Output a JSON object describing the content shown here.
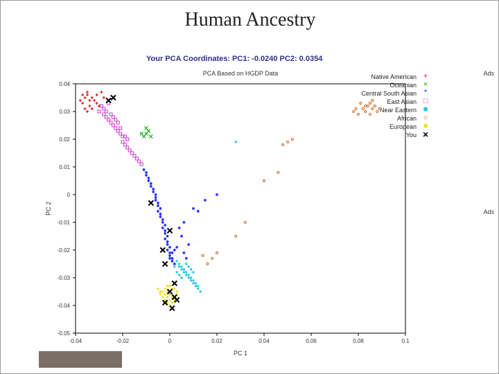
{
  "title": "Human Ancestry",
  "coords_line": "Your PCA Coordinates: PC1: -0.0240 PC2: 0.0354",
  "ads_label": "Ads",
  "chart": {
    "type": "scatter",
    "subtitle": "PCA Based on HGDP Data",
    "subtitle_fontsize": 9,
    "xlabel": "PC 1",
    "ylabel": "PC 2",
    "label_fontsize": 9,
    "tick_fontsize": 8,
    "background_color": "#ffffff",
    "axis_color": "#000000",
    "tick_color": "#000000",
    "xlim": [
      -0.04,
      0.1
    ],
    "ylim": [
      -0.05,
      0.04
    ],
    "xticks": [
      -0.04,
      -0.02,
      0,
      0.02,
      0.04,
      0.06,
      0.08,
      0.1
    ],
    "yticks": [
      -0.05,
      -0.04,
      -0.03,
      -0.02,
      -0.01,
      0,
      0.01,
      0.02,
      0.03,
      0.04
    ],
    "legend": [
      {
        "label": "Native American",
        "color": "#e01010",
        "marker": "+"
      },
      {
        "label": "Oceanian",
        "color": "#10a810",
        "marker": "x"
      },
      {
        "label": "Central South Asian",
        "color": "#2030ff",
        "marker": "*"
      },
      {
        "label": "East Asian",
        "color": "#d030d0",
        "marker": "square"
      },
      {
        "label": "Near Eastern",
        "color": "#20c8e8",
        "marker": "square-filled"
      },
      {
        "label": "African",
        "color": "#c86820",
        "marker": "o"
      },
      {
        "label": "European",
        "color": "#f0e020",
        "marker": "square-filled"
      },
      {
        "label": "You",
        "color": "#000000",
        "marker": "X"
      }
    ],
    "series": {
      "native_american": {
        "color": "#e01010",
        "marker": "+",
        "size": 4,
        "points": [
          [
            -0.036,
            0.035
          ],
          [
            -0.035,
            0.036
          ],
          [
            -0.034,
            0.034
          ],
          [
            -0.037,
            0.033
          ],
          [
            -0.035,
            0.037
          ],
          [
            -0.033,
            0.035
          ],
          [
            -0.034,
            0.032
          ],
          [
            -0.036,
            0.031
          ],
          [
            -0.032,
            0.034
          ],
          [
            -0.031,
            0.033
          ],
          [
            -0.035,
            0.03
          ],
          [
            -0.033,
            0.031
          ],
          [
            -0.03,
            0.032
          ],
          [
            -0.031,
            0.036
          ],
          [
            -0.038,
            0.034
          ],
          [
            -0.037,
            0.036
          ],
          [
            -0.029,
            0.037
          ],
          [
            -0.028,
            0.035
          ]
        ]
      },
      "oceanian": {
        "color": "#10a810",
        "marker": "x",
        "size": 5,
        "points": [
          [
            -0.01,
            0.022
          ],
          [
            -0.011,
            0.021
          ],
          [
            -0.009,
            0.023
          ],
          [
            -0.012,
            0.022
          ],
          [
            -0.008,
            0.021
          ],
          [
            -0.01,
            0.024
          ]
        ]
      },
      "east_asian": {
        "color": "#d030d0",
        "marker": "square",
        "size": 4,
        "points": [
          [
            -0.03,
            0.03
          ],
          [
            -0.028,
            0.029
          ],
          [
            -0.027,
            0.028
          ],
          [
            -0.026,
            0.027
          ],
          [
            -0.025,
            0.026
          ],
          [
            -0.024,
            0.025
          ],
          [
            -0.023,
            0.024
          ],
          [
            -0.022,
            0.023
          ],
          [
            -0.021,
            0.022
          ],
          [
            -0.02,
            0.021
          ],
          [
            -0.029,
            0.032
          ],
          [
            -0.028,
            0.031
          ],
          [
            -0.027,
            0.03
          ],
          [
            -0.026,
            0.033
          ],
          [
            -0.025,
            0.029
          ],
          [
            -0.024,
            0.028
          ],
          [
            -0.023,
            0.027
          ],
          [
            -0.02,
            0.019
          ],
          [
            -0.019,
            0.018
          ],
          [
            -0.018,
            0.017
          ],
          [
            -0.017,
            0.016
          ],
          [
            -0.016,
            0.015
          ],
          [
            -0.015,
            0.014
          ],
          [
            -0.014,
            0.013
          ],
          [
            -0.013,
            0.012
          ],
          [
            -0.012,
            0.011
          ],
          [
            -0.018,
            0.02
          ],
          [
            -0.019,
            0.021
          ],
          [
            -0.021,
            0.024
          ],
          [
            -0.022,
            0.026
          ]
        ]
      },
      "central_south_asian": {
        "color": "#2030ff",
        "marker": "*",
        "size": 4,
        "points": [
          [
            -0.011,
            0.009
          ],
          [
            -0.01,
            0.008
          ],
          [
            -0.009,
            0.006
          ],
          [
            -0.008,
            0.004
          ],
          [
            -0.007,
            0.002
          ],
          [
            -0.006,
            0.0
          ],
          [
            -0.006,
            -0.002
          ],
          [
            -0.005,
            -0.004
          ],
          [
            -0.005,
            -0.006
          ],
          [
            -0.004,
            -0.008
          ],
          [
            -0.003,
            -0.01
          ],
          [
            -0.003,
            -0.012
          ],
          [
            -0.002,
            -0.014
          ],
          [
            -0.002,
            -0.016
          ],
          [
            -0.001,
            -0.018
          ],
          [
            -0.001,
            -0.02
          ],
          [
            0.0,
            -0.022
          ],
          [
            0.0,
            -0.023
          ],
          [
            0.001,
            -0.024
          ],
          [
            0.002,
            -0.025
          ],
          [
            -0.01,
            0.007
          ],
          [
            -0.009,
            0.005
          ],
          [
            -0.008,
            0.003
          ],
          [
            -0.007,
            0.001
          ],
          [
            -0.006,
            -0.001
          ],
          [
            -0.005,
            -0.003
          ],
          [
            -0.004,
            -0.005
          ],
          [
            -0.004,
            -0.007
          ],
          [
            -0.003,
            -0.009
          ],
          [
            -0.002,
            -0.011
          ],
          [
            -0.002,
            -0.013
          ],
          [
            -0.001,
            -0.015
          ],
          [
            -0.001,
            -0.017
          ],
          [
            0.0,
            -0.019
          ],
          [
            0.0,
            -0.021
          ],
          [
            0.001,
            -0.023
          ],
          [
            0.01,
            -0.005
          ],
          [
            0.015,
            -0.002
          ],
          [
            0.02,
            0.0
          ],
          [
            0.012,
            -0.006
          ],
          [
            0.006,
            -0.01
          ],
          [
            0.004,
            -0.012
          ],
          [
            0.005,
            -0.015
          ],
          [
            0.008,
            -0.018
          ],
          [
            0.003,
            -0.019
          ],
          [
            0.002,
            -0.02
          ],
          [
            0.006,
            -0.021
          ],
          [
            0.007,
            -0.023
          ],
          [
            0.001,
            -0.021
          ]
        ]
      },
      "near_eastern": {
        "color": "#20c8e8",
        "marker": "square-filled",
        "size": 3,
        "points": [
          [
            0.003,
            -0.024
          ],
          [
            0.004,
            -0.025
          ],
          [
            0.005,
            -0.026
          ],
          [
            0.006,
            -0.027
          ],
          [
            0.007,
            -0.028
          ],
          [
            0.008,
            -0.029
          ],
          [
            0.009,
            -0.03
          ],
          [
            0.01,
            -0.031
          ],
          [
            0.011,
            -0.032
          ],
          [
            0.012,
            -0.033
          ],
          [
            0.004,
            -0.026
          ],
          [
            0.005,
            -0.027
          ],
          [
            0.006,
            -0.028
          ],
          [
            0.007,
            -0.029
          ],
          [
            0.008,
            -0.03
          ],
          [
            0.009,
            -0.031
          ],
          [
            0.01,
            -0.032
          ],
          [
            0.011,
            -0.033
          ],
          [
            0.012,
            -0.034
          ],
          [
            0.013,
            -0.035
          ],
          [
            0.007,
            -0.025
          ],
          [
            0.008,
            -0.026
          ],
          [
            0.009,
            -0.027
          ],
          [
            0.01,
            -0.028
          ],
          [
            0.028,
            0.019
          ],
          [
            0.003,
            -0.028
          ],
          [
            0.004,
            -0.029
          ],
          [
            0.005,
            -0.03
          ],
          [
            0.002,
            -0.026
          ]
        ]
      },
      "african": {
        "color": "#c86820",
        "marker": "o",
        "size": 3,
        "points": [
          [
            0.084,
            0.032
          ],
          [
            0.086,
            0.031
          ],
          [
            0.085,
            0.033
          ],
          [
            0.083,
            0.03
          ],
          [
            0.087,
            0.032
          ],
          [
            0.082,
            0.031
          ],
          [
            0.088,
            0.03
          ],
          [
            0.081,
            0.033
          ],
          [
            0.08,
            0.029
          ],
          [
            0.089,
            0.031
          ],
          [
            0.078,
            0.03
          ],
          [
            0.085,
            0.029
          ],
          [
            0.083,
            0.032
          ],
          [
            0.086,
            0.034
          ],
          [
            0.079,
            0.031
          ],
          [
            0.05,
            0.019
          ],
          [
            0.052,
            0.02
          ],
          [
            0.048,
            0.018
          ],
          [
            0.046,
            0.008
          ],
          [
            0.04,
            0.005
          ],
          [
            0.032,
            -0.01
          ],
          [
            0.028,
            -0.015
          ],
          [
            0.02,
            -0.021
          ],
          [
            0.018,
            -0.023
          ],
          [
            0.016,
            -0.025
          ],
          [
            0.014,
            -0.022
          ]
        ]
      },
      "european": {
        "color": "#f0e020",
        "marker": "square-filled",
        "size": 3,
        "points": [
          [
            -0.002,
            -0.034
          ],
          [
            -0.001,
            -0.035
          ],
          [
            0.0,
            -0.036
          ],
          [
            0.001,
            -0.037
          ],
          [
            0.002,
            -0.038
          ],
          [
            -0.003,
            -0.035
          ],
          [
            -0.002,
            -0.036
          ],
          [
            -0.001,
            -0.037
          ],
          [
            0.0,
            -0.038
          ],
          [
            0.001,
            -0.039
          ],
          [
            -0.004,
            -0.036
          ],
          [
            -0.003,
            -0.037
          ],
          [
            -0.002,
            -0.038
          ],
          [
            -0.001,
            -0.039
          ],
          [
            0.0,
            -0.04
          ],
          [
            -0.005,
            -0.034
          ],
          [
            -0.004,
            -0.035
          ],
          [
            0.002,
            -0.034
          ],
          [
            0.003,
            -0.035
          ],
          [
            0.003,
            -0.036
          ],
          [
            0.0,
            -0.033
          ],
          [
            0.001,
            -0.034
          ],
          [
            -0.001,
            -0.033
          ]
        ]
      },
      "you": {
        "color": "#000000",
        "marker": "X",
        "size": 7,
        "points": [
          [
            -0.024,
            0.035
          ],
          [
            -0.026,
            0.034
          ],
          [
            -0.008,
            -0.003
          ],
          [
            0.0,
            -0.013
          ],
          [
            -0.003,
            -0.02
          ],
          [
            -0.002,
            -0.025
          ],
          [
            0.002,
            -0.032
          ],
          [
            0.0,
            -0.035
          ],
          [
            0.002,
            -0.037
          ],
          [
            -0.002,
            -0.039
          ],
          [
            0.001,
            -0.041
          ],
          [
            0.003,
            -0.038
          ]
        ]
      }
    }
  }
}
